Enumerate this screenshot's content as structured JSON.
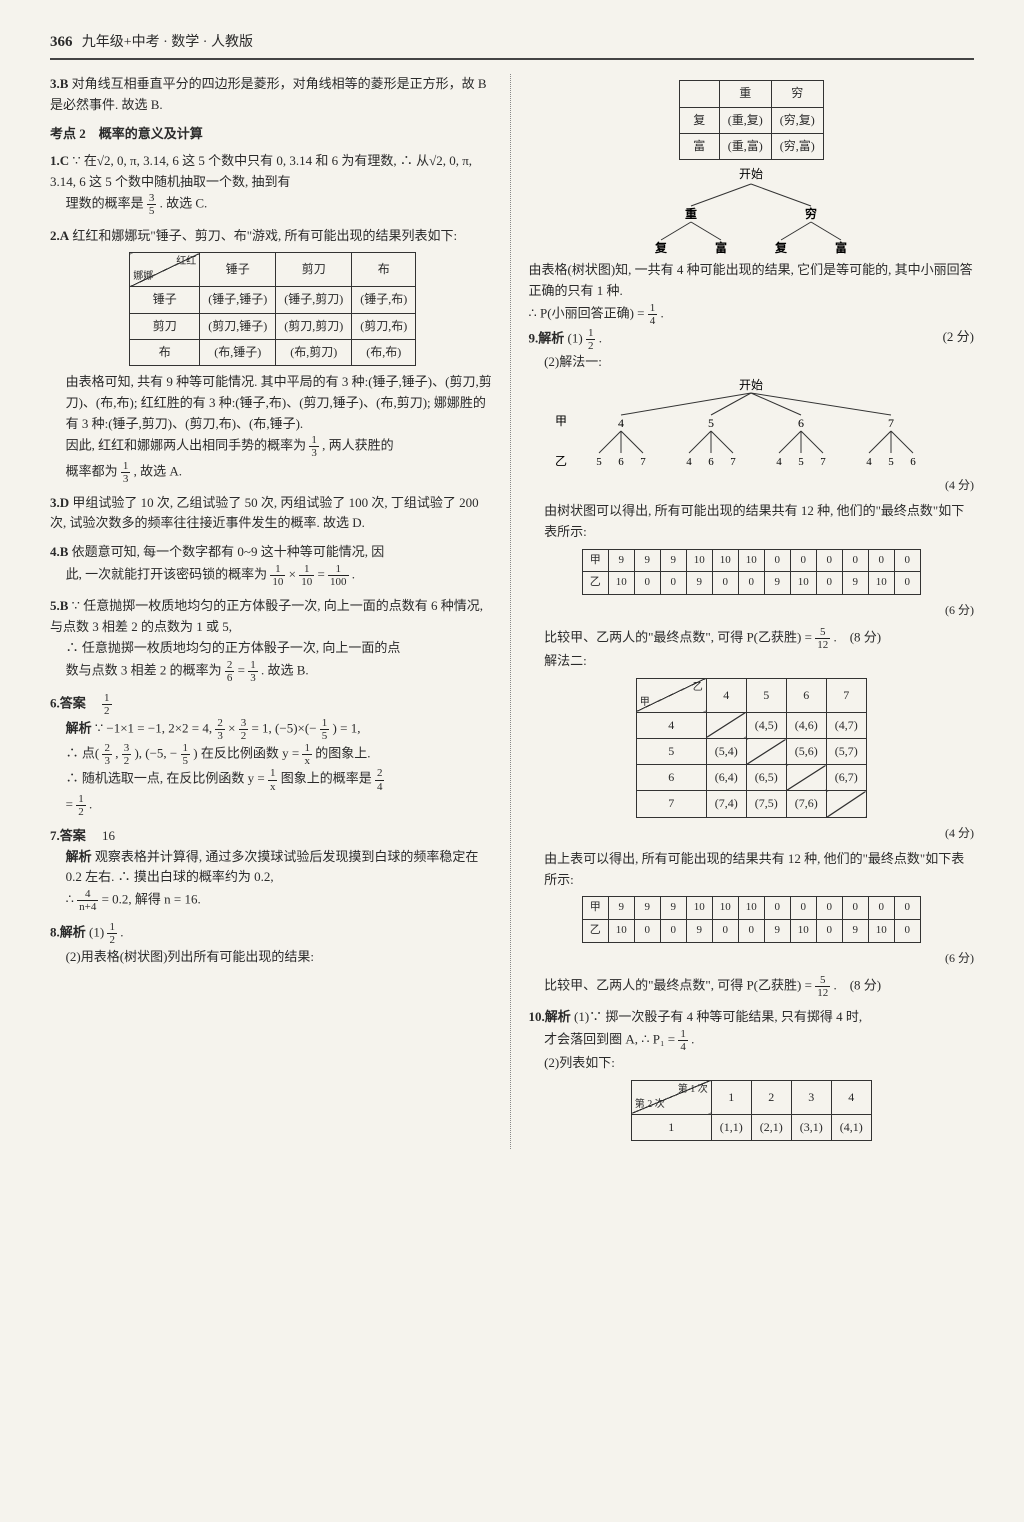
{
  "header": {
    "page_number": "366",
    "title": "九年级+中考 · 数学 · 人教版"
  },
  "left": {
    "q3": {
      "num": "3.B",
      "text": "对角线互相垂直平分的四边形是菱形，对角线相等的菱形是正方形，故 B 是必然事件. 故选 B."
    },
    "kao2": "考点 2　概率的意义及计算",
    "q1": {
      "num": "1.C",
      "line1": "∵ 在√2, 0, π, 3.14, 6 这 5 个数中只有 0, 3.14 和 6 为有理数, ∴ 从√2, 0, π, 3.14, 6 这 5 个数中随机抽取一个数, 抽到有",
      "line2_pre": "理数的概率是",
      "line2_post": ". 故选 C.",
      "frac_n": "3",
      "frac_d": "5"
    },
    "q2": {
      "num": "2.A",
      "intro": "红红和娜娜玩\"锤子、剪刀、布\"游戏, 所有可能出现的结果列表如下:",
      "table": {
        "diag_top": "红红",
        "diag_bottom": "娜娜",
        "cols": [
          "锤子",
          "剪刀",
          "布"
        ],
        "rows": [
          "锤子",
          "剪刀",
          "布"
        ],
        "cells": [
          [
            "(锤子,锤子)",
            "(锤子,剪刀)",
            "(锤子,布)"
          ],
          [
            "(剪刀,锤子)",
            "(剪刀,剪刀)",
            "(剪刀,布)"
          ],
          [
            "(布,锤子)",
            "(布,剪刀)",
            "(布,布)"
          ]
        ]
      },
      "after1": "由表格可知, 共有 9 种等可能情况. 其中平局的有 3 种:(锤子,锤子)、(剪刀,剪刀)、(布,布); 红红胜的有 3 种:(锤子,布)、(剪刀,锤子)、(布,剪刀); 娜娜胜的有 3 种:(锤子,剪刀)、(剪刀,布)、(布,锤子).",
      "after2_pre": "因此, 红红和娜娜两人出相同手势的概率为",
      "after2_mid": ", 两人获胜的",
      "after3_pre": "概率都为",
      "after3_post": ", 故选 A.",
      "f1n": "1",
      "f1d": "3",
      "f2n": "1",
      "f2d": "3"
    },
    "q3d": {
      "num": "3.D",
      "text": "甲组试验了 10 次, 乙组试验了 50 次, 丙组试验了 100 次, 丁组试验了 200 次, 试验次数多的频率往往接近事件发生的概率. 故选 D."
    },
    "q4": {
      "num": "4.B",
      "line1": "依题意可知, 每一个数字都有 0~9 这十种等可能情况, 因",
      "line2_pre": "此, 一次就能打开该密码锁的概率为",
      "eq": " × ",
      "eq2": " = ",
      "dot": ".",
      "f1n": "1",
      "f1d": "10",
      "f2n": "1",
      "f2d": "10",
      "f3n": "1",
      "f3d": "100"
    },
    "q5": {
      "num": "5.B",
      "line1": "∵ 任意抛掷一枚质地均匀的正方体骰子一次, 向上一面的点数有 6 种情况, 与点数 3 相差 2 的点数为 1 或 5,",
      "line2": "∴ 任意抛掷一枚质地均匀的正方体骰子一次, 向上一面的点",
      "line3_pre": "数与点数 3 相差 2 的概率为",
      "eq": " = ",
      "post": ". 故选 B.",
      "f1n": "2",
      "f1d": "6",
      "f2n": "1",
      "f2d": "3"
    },
    "q6": {
      "num": "6.答案",
      "ans_n": "1",
      "ans_d": "2",
      "jx": "解析",
      "line1": "∵ −1×1 = −1, 2×2 = 4, ",
      "mf1n": "2",
      "mf1d": "3",
      "mf2n": "3",
      "mf2d": "2",
      "line1b": " = 1, (−5)×(−",
      "mf3n": "1",
      "mf3d": "5",
      "line1c": ") = 1,",
      "line2a": "∴ 点(",
      "line2b": ", ",
      "line2c": "), (−5, −",
      "line2d": ") 在反比例函数 y = ",
      "mf4n": "1",
      "mf4d": "x",
      "line2e": " 的图象上.",
      "line3a": "∴ 随机选取一点, 在反比例函数 y = ",
      "line3b": " 图象上的概率是 ",
      "f5n": "2",
      "f5d": "4",
      "line4": " = ",
      "f6n": "1",
      "f6d": "2",
      "dot": "."
    },
    "q7": {
      "num": "7.答案",
      "ans": "16",
      "jx": "解析",
      "text": "观察表格并计算得, 通过多次摸球试验后发现摸到白球的频率稳定在 0.2 左右. ∴ 摸出白球的概率约为 0.2,",
      "line2_pre": "∴ ",
      "fn": "4",
      "fd": "n+4",
      "line2_post": " = 0.2, 解得 n = 16."
    },
    "q8": {
      "num": "8.解析",
      "part1_pre": "(1)",
      "fn": "1",
      "fd": "2",
      "dot": ".",
      "part2": "(2)用表格(树状图)列出所有可能出现的结果:"
    }
  },
  "right": {
    "t1": {
      "cols": [
        "重",
        "穷"
      ],
      "rows": [
        "复",
        "富"
      ],
      "cells": [
        [
          "(重,复)",
          "(穷,复)"
        ],
        [
          "(重,富)",
          "(穷,富)"
        ]
      ]
    },
    "tree1": {
      "root": "开始",
      "l1": [
        "重",
        "穷"
      ],
      "l2": [
        "复",
        "富",
        "复",
        "富"
      ]
    },
    "p1": "由表格(树状图)知, 一共有 4 种可能出现的结果, 它们是等可能的, 其中小丽回答正确的只有 1 种.",
    "p2_pre": "∴ P(小丽回答正确) = ",
    "p2_n": "1",
    "p2_d": "4",
    "p2_dot": ".",
    "q9": {
      "num": "9.解析",
      "p1_pre": "(1)",
      "p1_n": "1",
      "p1_d": "2",
      "p1_dot": ".",
      "p1_score": "(2 分)",
      "p2": "(2)解法一:",
      "tree": {
        "root": "开始",
        "jia": "甲",
        "l1": [
          "4",
          "5",
          "6",
          "7"
        ],
        "yi": "乙",
        "l2": [
          [
            "5",
            "6",
            "7"
          ],
          [
            "4",
            "6",
            "7"
          ],
          [
            "4",
            "5",
            "7"
          ],
          [
            "4",
            "5",
            "6"
          ]
        ]
      },
      "score4": "(4 分)",
      "p3": "由树状图可以得出, 所有可能出现的结果共有 12 种, 他们的\"最终点数\"如下表所示:",
      "tbl_rows": [
        "甲",
        "乙"
      ],
      "tbl_row1": [
        "9",
        "9",
        "9",
        "10",
        "10",
        "10",
        "0",
        "0",
        "0",
        "0",
        "0",
        "0"
      ],
      "tbl_row2": [
        "10",
        "0",
        "0",
        "9",
        "0",
        "0",
        "9",
        "10",
        "0",
        "9",
        "10",
        "0"
      ],
      "score6": "(6 分)",
      "p4_pre": "比较甲、乙两人的\"最终点数\", 可得 P(乙获胜) = ",
      "p4_n": "5",
      "p4_d": "12",
      "p4_post": ".　(8 分)",
      "p5": "解法二:",
      "tbl2": {
        "diag_top": "乙",
        "diag_bottom": "甲",
        "cols": [
          "4",
          "5",
          "6",
          "7"
        ],
        "rows": [
          "4",
          "5",
          "6",
          "7"
        ],
        "cells": [
          [
            "",
            "(4,5)",
            "(4,6)",
            "(4,7)"
          ],
          [
            "(5,4)",
            "",
            "(5,6)",
            "(5,7)"
          ],
          [
            "(6,4)",
            "(6,5)",
            "",
            "(6,7)"
          ],
          [
            "(7,4)",
            "(7,5)",
            "(7,6)",
            ""
          ]
        ]
      },
      "score4b": "(4 分)",
      "p6": "由上表可以得出, 所有可能出现的结果共有 12 种, 他们的\"最终点数\"如下表所示:",
      "tbl_rows_b": [
        "甲",
        "乙"
      ],
      "tbl_row1b": [
        "9",
        "9",
        "9",
        "10",
        "10",
        "10",
        "0",
        "0",
        "0",
        "0",
        "0",
        "0"
      ],
      "tbl_row2b": [
        "10",
        "0",
        "0",
        "9",
        "0",
        "0",
        "9",
        "10",
        "0",
        "9",
        "10",
        "0"
      ],
      "score6b": "(6 分)",
      "p7_pre": "比较甲、乙两人的\"最终点数\", 可得 P(乙获胜) = ",
      "p7_n": "5",
      "p7_d": "12",
      "p7_post": ".　(8 分)"
    },
    "q10": {
      "num": "10.解析",
      "p1_pre": "(1)∵ 掷一次骰子有 4 种等可能结果, 只有掷得 4 时,",
      "p2_pre": "才会落回到圈 A, ∴ P₁ = ",
      "p2_n": "1",
      "p2_d": "4",
      "p2_dot": ".",
      "p3": "(2)列表如下:",
      "tbl": {
        "diag_top": "第 1 次",
        "diag_bottom": "第 2 次",
        "cols": [
          "1",
          "2",
          "3",
          "4"
        ],
        "rows": [
          "1"
        ],
        "cells": [
          [
            "(1,1)",
            "(2,1)",
            "(3,1)",
            "(4,1)"
          ]
        ]
      }
    }
  }
}
